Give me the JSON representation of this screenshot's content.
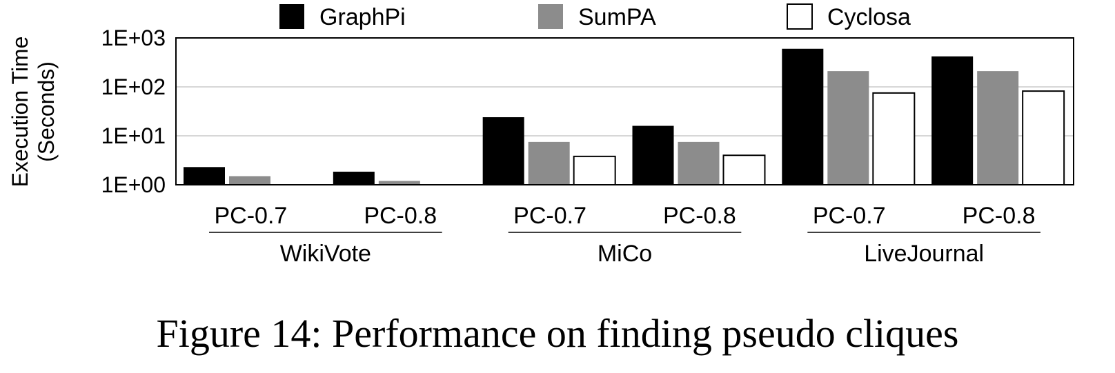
{
  "caption": "Figure 14: Performance on finding pseudo cliques",
  "colors": {
    "GraphPi": "#000000",
    "SumPA": "#8c8c8c",
    "Cyclosa": "#ffffff",
    "stroke": "#000000",
    "grid": "#bfbfbf"
  },
  "chart_data": {
    "type": "bar",
    "scale": "log",
    "ylabel": [
      "Execution Time",
      "(Seconds)"
    ],
    "ylim": [
      1,
      1000
    ],
    "yticks": [
      {
        "value": 1,
        "label": "1E+00"
      },
      {
        "value": 10,
        "label": "1E+01"
      },
      {
        "value": 100,
        "label": "1E+02"
      },
      {
        "value": 1000,
        "label": "1E+03"
      }
    ],
    "grid": true,
    "legend_position": "top",
    "legend": [
      "GraphPi",
      "SumPA",
      "Cyclosa"
    ],
    "groups": [
      "WikiVote",
      "MiCo",
      "LiveJournal"
    ],
    "categories": [
      "PC-0.7",
      "PC-0.8",
      "PC-0.7",
      "PC-0.8",
      "PC-0.7",
      "PC-0.8"
    ],
    "series": [
      {
        "name": "GraphPi",
        "values": [
          2.3,
          1.85,
          24,
          16,
          600,
          420
        ]
      },
      {
        "name": "SumPA",
        "values": [
          1.5,
          1.2,
          7.5,
          7.5,
          210,
          210
        ]
      },
      {
        "name": "Cyclosa",
        "values": [
          1,
          1,
          3.8,
          4.0,
          75,
          82
        ]
      }
    ]
  }
}
